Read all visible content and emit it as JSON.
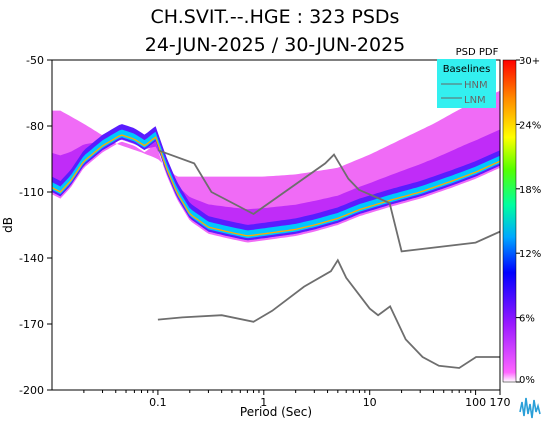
{
  "chart_data": {
    "type": "heatmap",
    "title": "CH.SVIT.--.HGE : 323 PSDs",
    "subtitle": "24-JUN-2025 / 30-JUN-2025",
    "xlabel": "Period (Sec)",
    "ylabel": "dB",
    "x_scale": "log",
    "xlim": [
      0.01,
      170
    ],
    "ylim": [
      -200,
      -50
    ],
    "x_ticks": [
      {
        "value": 0.1,
        "label": "0.1"
      },
      {
        "value": 1,
        "label": "1"
      },
      {
        "value": 10,
        "label": "10"
      },
      {
        "value": 100,
        "label": "100"
      },
      {
        "value": 170,
        "label": "170"
      }
    ],
    "y_ticks": [
      {
        "value": -50,
        "label": "-50"
      },
      {
        "value": -80,
        "label": "-80"
      },
      {
        "value": -110,
        "label": "-110"
      },
      {
        "value": -140,
        "label": "-140"
      },
      {
        "value": -170,
        "label": "-170"
      },
      {
        "value": -200,
        "label": "-200"
      }
    ],
    "colorbar": {
      "title": "PSD PDF",
      "tick_labels": [
        "0%",
        "6%",
        "12%",
        "18%",
        "24%",
        "30+"
      ],
      "colors": [
        "#ff33ff",
        "#9a1aff",
        "#0000ff",
        "#00c8ff",
        "#00ff66",
        "#ffff00",
        "#ff8c00",
        "#ff0000"
      ]
    },
    "legend": {
      "title": "Baselines",
      "placement": "top-right",
      "entries": [
        "HNM",
        "LNM"
      ],
      "background": "#33f0f0"
    },
    "baselines": {
      "HNM": [
        [
          0.1,
          -91
        ],
        [
          0.22,
          -97
        ],
        [
          0.32,
          -110
        ],
        [
          0.8,
          -120
        ],
        [
          3.8,
          -97
        ],
        [
          4.6,
          -93
        ],
        [
          6.3,
          -104
        ],
        [
          7.9,
          -109
        ],
        [
          15.4,
          -115
        ],
        [
          20,
          -137
        ],
        [
          100,
          -133
        ],
        [
          170,
          -128
        ]
      ],
      "LNM": [
        [
          0.1,
          -168
        ],
        [
          0.17,
          -167
        ],
        [
          0.4,
          -166
        ],
        [
          0.8,
          -169
        ],
        [
          1.2,
          -164
        ],
        [
          2.4,
          -153
        ],
        [
          4.3,
          -146
        ],
        [
          5,
          -141
        ],
        [
          6,
          -149
        ],
        [
          10,
          -163
        ],
        [
          12,
          -166
        ],
        [
          15.6,
          -162
        ],
        [
          21.9,
          -177
        ],
        [
          31.6,
          -185
        ],
        [
          45,
          -189
        ],
        [
          70,
          -190
        ],
        [
          101,
          -185
        ],
        [
          170,
          -185
        ]
      ]
    },
    "psd_modes": [
      {
        "name": "mode",
        "points": [
          [
            0.01,
            -108
          ],
          [
            0.012,
            -110
          ],
          [
            0.015,
            -105
          ],
          [
            0.02,
            -96
          ],
          [
            0.03,
            -89
          ],
          [
            0.045,
            -84
          ],
          [
            0.06,
            -86
          ],
          [
            0.075,
            -89
          ],
          [
            0.095,
            -85
          ],
          [
            0.12,
            -99
          ],
          [
            0.15,
            -110
          ],
          [
            0.2,
            -120
          ],
          [
            0.3,
            -126
          ],
          [
            0.45,
            -128
          ],
          [
            0.7,
            -130
          ],
          [
            1,
            -129
          ],
          [
            2,
            -127
          ],
          [
            3,
            -125
          ],
          [
            5,
            -122
          ],
          [
            8,
            -118
          ],
          [
            15,
            -114
          ],
          [
            30,
            -110
          ],
          [
            60,
            -105
          ],
          [
            100,
            -101
          ],
          [
            170,
            -96
          ]
        ]
      },
      {
        "name": "upper",
        "points": [
          [
            0.012,
            -73
          ],
          [
            0.02,
            -79
          ],
          [
            0.04,
            -88
          ],
          [
            0.07,
            -92
          ],
          [
            0.1,
            -95
          ],
          [
            0.15,
            -103
          ],
          [
            0.3,
            -103
          ],
          [
            1,
            -103
          ],
          [
            2,
            -102
          ],
          [
            5,
            -99
          ],
          [
            10,
            -93
          ],
          [
            20,
            -86
          ],
          [
            40,
            -79
          ],
          [
            80,
            -71
          ],
          [
            170,
            -64
          ]
        ]
      }
    ]
  }
}
